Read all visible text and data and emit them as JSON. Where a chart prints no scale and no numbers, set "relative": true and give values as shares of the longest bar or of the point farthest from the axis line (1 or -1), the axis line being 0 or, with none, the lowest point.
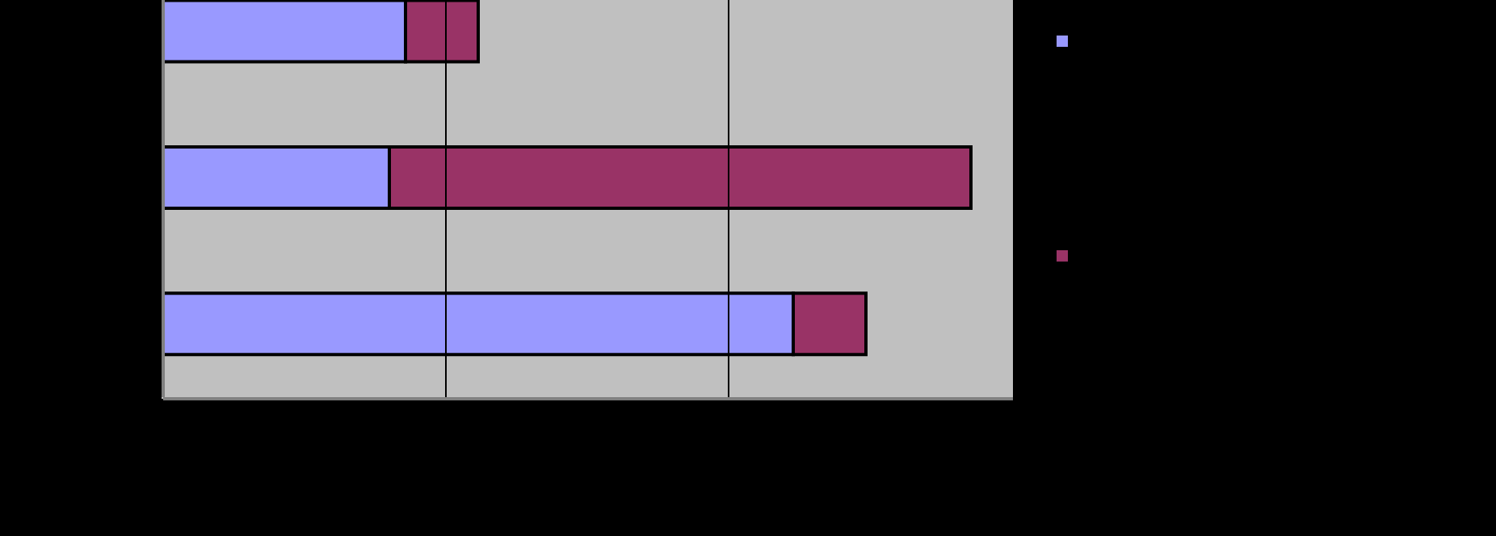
{
  "chart_data": {
    "type": "bar",
    "orientation": "horizontal",
    "stacked": true,
    "relative": true,
    "categories": [
      null,
      null,
      null
    ],
    "series": [
      {
        "color": "#9999ff",
        "values": [
          0.3,
          0.28,
          0.78
        ]
      },
      {
        "color": "#993366",
        "values": [
          0.09,
          0.72,
          0.09
        ]
      }
    ],
    "ref_lines": [
      {
        "axis": "x",
        "value": 0.35,
        "color": "#000000"
      },
      {
        "axis": "x",
        "value": 0.7,
        "color": "#000000"
      }
    ]
  }
}
